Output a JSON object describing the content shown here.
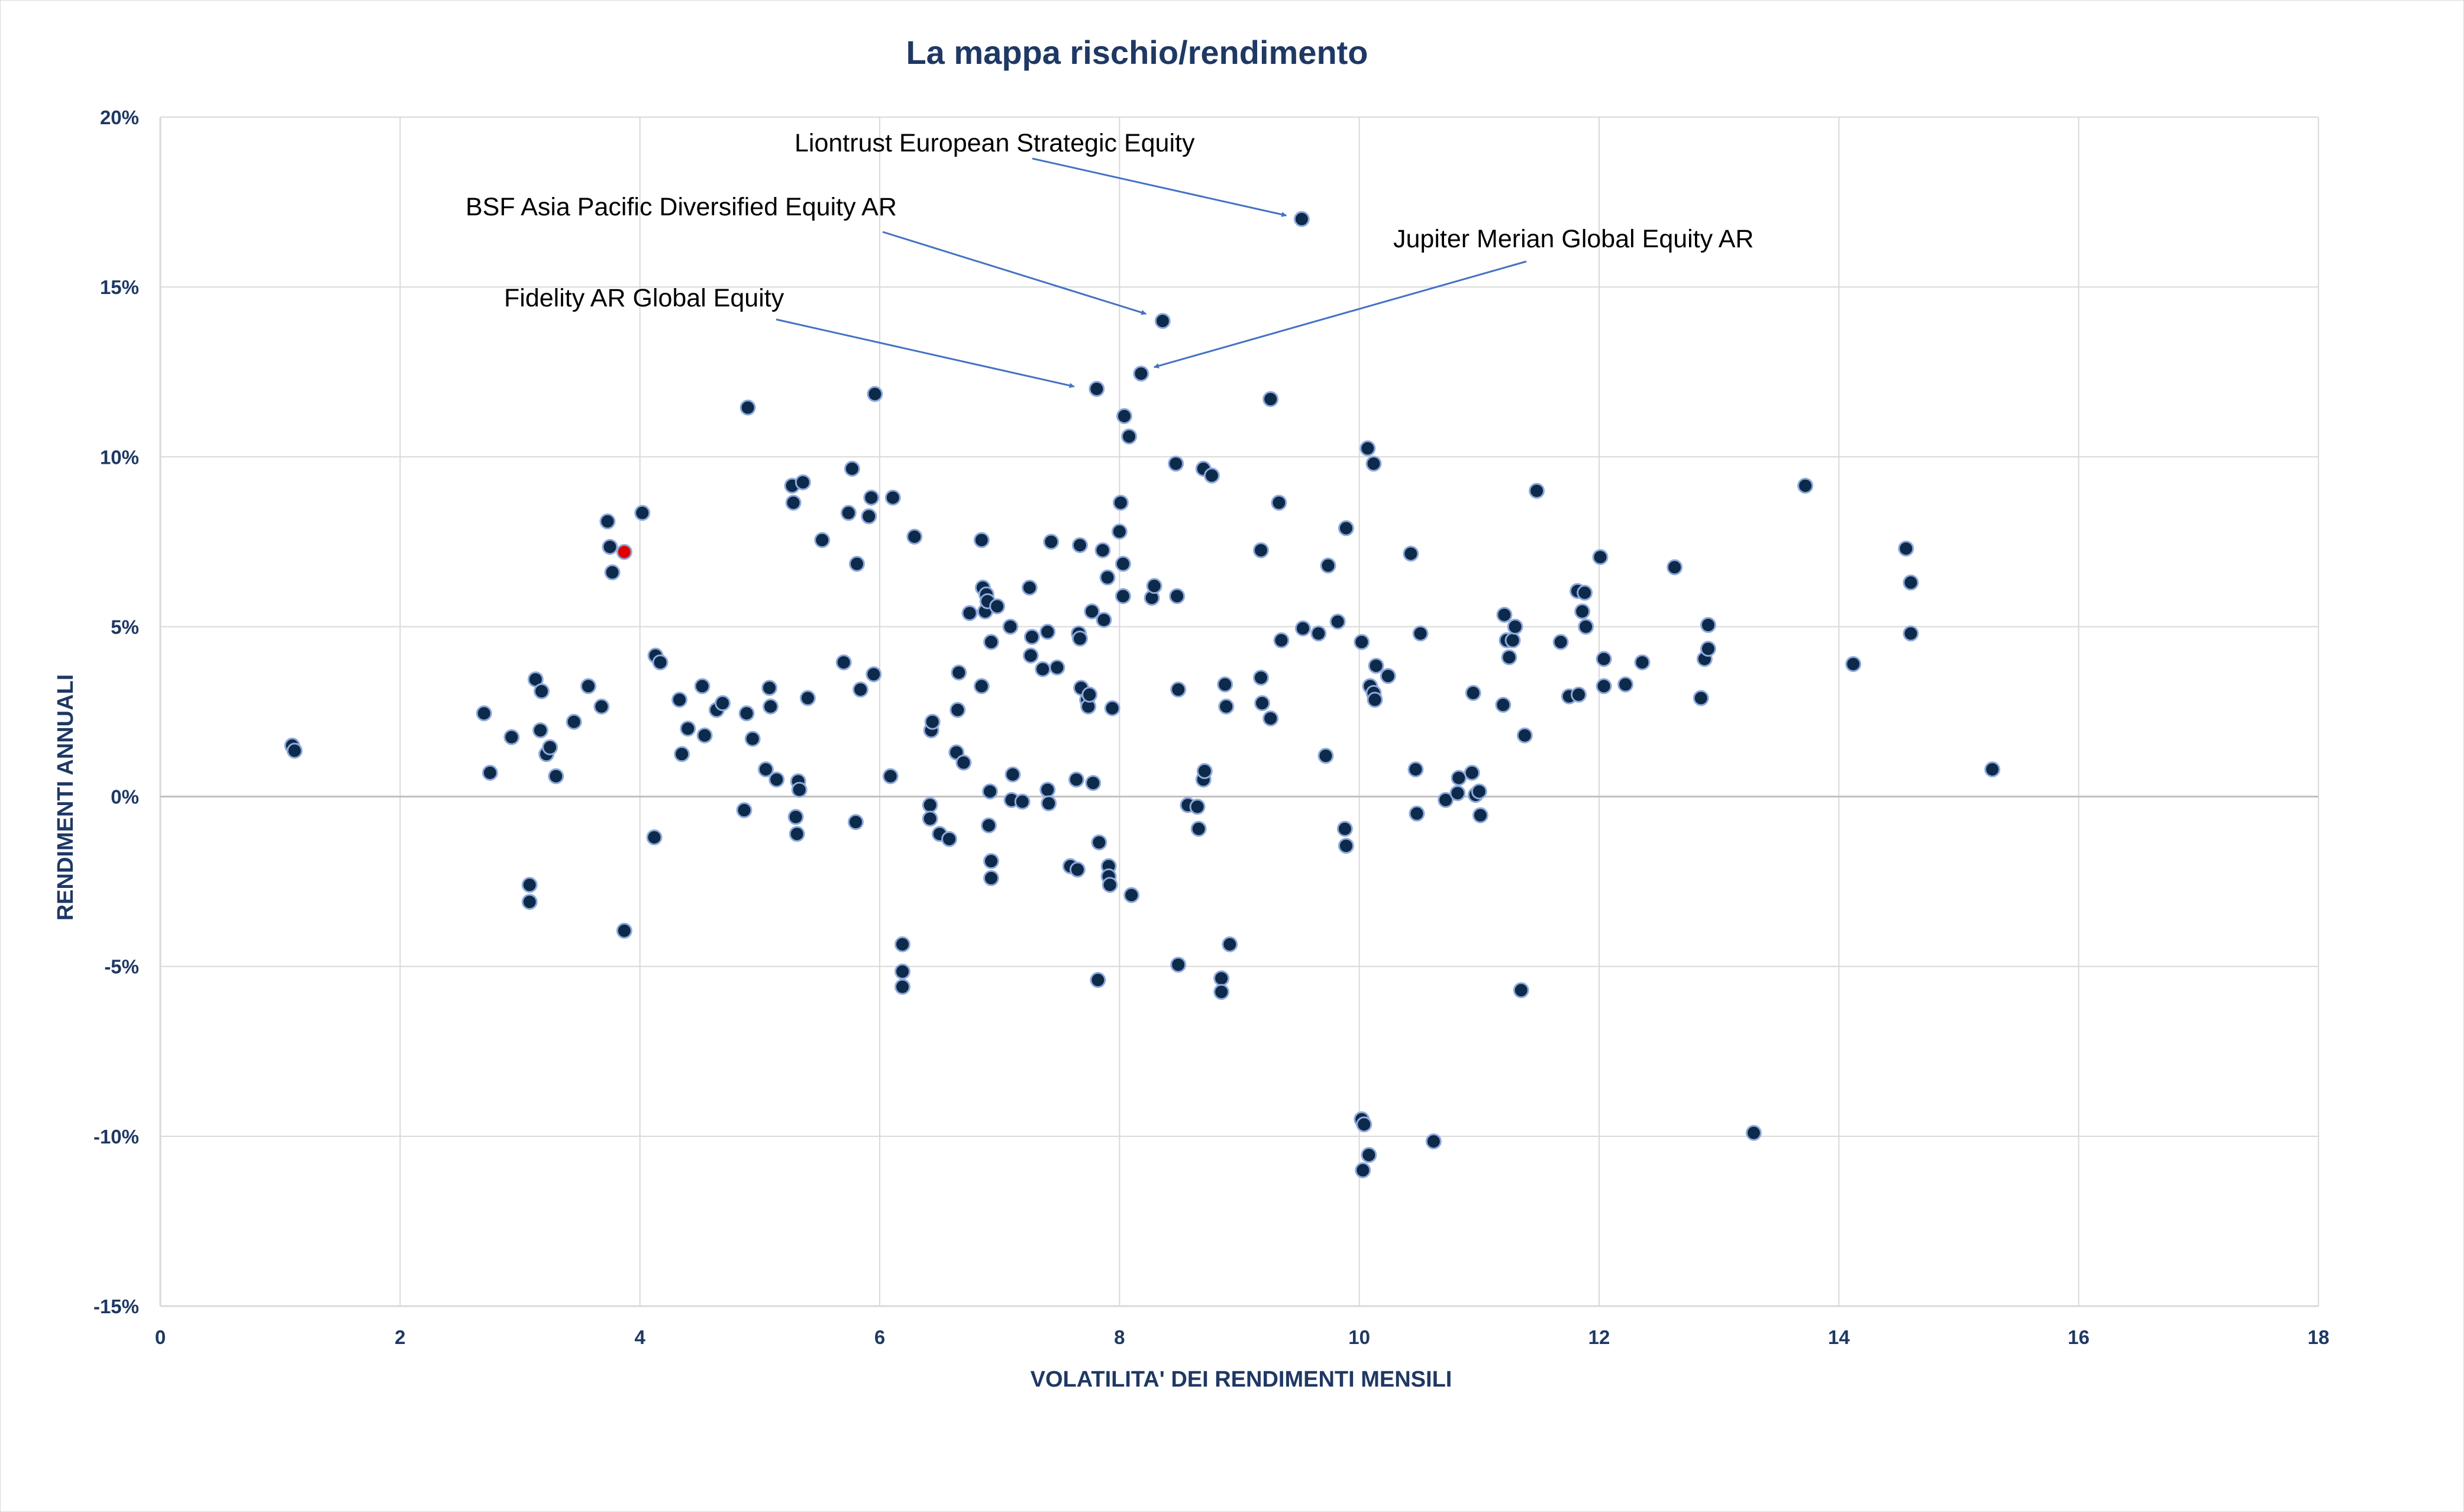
{
  "chart_data": {
    "type": "scatter",
    "title": "La mappa rischio/rendimento",
    "xlabel": "VOLATILITA' DEI RENDIMENTI MENSILI",
    "ylabel": "RENDIMENTI ANNUALI",
    "xlim": [
      0,
      18
    ],
    "ylim": [
      -15,
      20
    ],
    "x_ticks": [
      0,
      2,
      4,
      6,
      8,
      10,
      12,
      14,
      16,
      18
    ],
    "y_ticks": [
      -15,
      -10,
      -5,
      0,
      5,
      10,
      15,
      20
    ],
    "y_tick_labels": [
      "-15%",
      "-10%",
      "-5%",
      "0%",
      "5%",
      "10%",
      "15%",
      "20%"
    ],
    "grid": true,
    "colors": {
      "point": "#0d2a4a",
      "point_edge": "#8faadc",
      "highlight": "#e00000",
      "arrow": "#4472c4",
      "grid": "#d9d9d9",
      "text": "#1f3864"
    },
    "annotations": [
      {
        "text": "Liontrust European Strategic Equity",
        "x": 9.52,
        "y": 17.0
      },
      {
        "text": "BSF Asia Pacific Diversified Equity AR",
        "x": 8.35,
        "y": 14.0
      },
      {
        "text": "Jupiter Merian Global Equity AR",
        "x": 8.17,
        "y": 12.5
      },
      {
        "text": "Fidelity AR Global Equity",
        "x": 7.8,
        "y": 12.0
      }
    ],
    "highlight": {
      "x": 3.87,
      "y": 7.2
    },
    "series": [
      {
        "values": [
          [
            1.1,
            1.5
          ],
          [
            1.12,
            1.35
          ],
          [
            2.7,
            2.45
          ],
          [
            2.75,
            0.7
          ],
          [
            2.93,
            1.75
          ],
          [
            3.08,
            -2.6
          ],
          [
            3.08,
            -3.1
          ],
          [
            3.13,
            3.45
          ],
          [
            3.17,
            1.95
          ],
          [
            3.18,
            3.1
          ],
          [
            3.22,
            1.25
          ],
          [
            3.25,
            1.45
          ],
          [
            3.3,
            0.6
          ],
          [
            3.45,
            2.2
          ],
          [
            3.57,
            3.25
          ],
          [
            3.68,
            2.65
          ],
          [
            3.73,
            8.1
          ],
          [
            3.75,
            7.35
          ],
          [
            3.77,
            6.6
          ],
          [
            3.87,
            -3.95
          ],
          [
            4.02,
            8.35
          ],
          [
            4.12,
            -1.2
          ],
          [
            4.13,
            4.15
          ],
          [
            4.17,
            3.95
          ],
          [
            4.33,
            2.85
          ],
          [
            4.35,
            1.25
          ],
          [
            4.4,
            2.0
          ],
          [
            4.52,
            3.25
          ],
          [
            4.54,
            1.8
          ],
          [
            4.64,
            2.55
          ],
          [
            4.69,
            2.75
          ],
          [
            4.87,
            -0.4
          ],
          [
            4.89,
            2.45
          ],
          [
            4.9,
            11.45
          ],
          [
            4.94,
            1.7
          ],
          [
            5.05,
            0.8
          ],
          [
            5.08,
            3.2
          ],
          [
            5.09,
            2.65
          ],
          [
            5.14,
            0.5
          ],
          [
            5.27,
            9.15
          ],
          [
            5.28,
            8.65
          ],
          [
            5.3,
            -0.6
          ],
          [
            5.31,
            -1.1
          ],
          [
            5.32,
            0.45
          ],
          [
            5.33,
            0.2
          ],
          [
            5.36,
            9.25
          ],
          [
            5.4,
            2.9
          ],
          [
            5.52,
            7.55
          ],
          [
            5.7,
            3.95
          ],
          [
            5.74,
            8.35
          ],
          [
            5.77,
            9.65
          ],
          [
            5.8,
            -0.75
          ],
          [
            5.81,
            6.85
          ],
          [
            5.84,
            3.15
          ],
          [
            5.91,
            8.25
          ],
          [
            5.93,
            8.8
          ],
          [
            5.95,
            3.6
          ],
          [
            5.96,
            11.85
          ],
          [
            6.09,
            0.6
          ],
          [
            6.11,
            8.8
          ],
          [
            6.19,
            -4.35
          ],
          [
            6.19,
            -5.15
          ],
          [
            6.19,
            -5.6
          ],
          [
            6.29,
            7.65
          ],
          [
            6.42,
            -0.25
          ],
          [
            6.42,
            -0.65
          ],
          [
            6.43,
            1.95
          ],
          [
            6.44,
            2.2
          ],
          [
            6.5,
            -1.1
          ],
          [
            6.58,
            -1.25
          ],
          [
            6.64,
            1.3
          ],
          [
            6.65,
            2.55
          ],
          [
            6.66,
            3.65
          ],
          [
            6.7,
            1.0
          ],
          [
            6.75,
            5.4
          ],
          [
            6.85,
            3.25
          ],
          [
            6.85,
            7.55
          ],
          [
            6.86,
            6.15
          ],
          [
            6.88,
            5.45
          ],
          [
            6.89,
            5.95
          ],
          [
            6.9,
            5.75
          ],
          [
            6.91,
            -0.85
          ],
          [
            6.92,
            0.15
          ],
          [
            6.93,
            4.55
          ],
          [
            6.93,
            -1.9
          ],
          [
            6.93,
            -2.4
          ],
          [
            6.98,
            5.6
          ],
          [
            7.09,
            5.0
          ],
          [
            7.1,
            -0.1
          ],
          [
            7.11,
            0.65
          ],
          [
            7.19,
            -0.15
          ],
          [
            7.25,
            6.15
          ],
          [
            7.26,
            4.15
          ],
          [
            7.27,
            4.7
          ],
          [
            7.36,
            3.75
          ],
          [
            7.4,
            4.85
          ],
          [
            7.4,
            0.2
          ],
          [
            7.41,
            -0.2
          ],
          [
            7.43,
            7.5
          ],
          [
            7.48,
            3.8
          ],
          [
            7.59,
            -2.05
          ],
          [
            7.64,
            0.5
          ],
          [
            7.65,
            -2.15
          ],
          [
            7.66,
            4.8
          ],
          [
            7.67,
            4.65
          ],
          [
            7.67,
            7.4
          ],
          [
            7.68,
            3.2
          ],
          [
            7.73,
            2.85
          ],
          [
            7.74,
            2.65
          ],
          [
            7.75,
            3.0
          ],
          [
            7.77,
            5.45
          ],
          [
            7.78,
            0.4
          ],
          [
            7.81,
            12.0
          ],
          [
            7.82,
            -5.4
          ],
          [
            7.83,
            -1.35
          ],
          [
            7.86,
            7.25
          ],
          [
            7.87,
            5.2
          ],
          [
            7.9,
            6.45
          ],
          [
            7.91,
            -2.05
          ],
          [
            7.91,
            -2.35
          ],
          [
            7.92,
            -2.6
          ],
          [
            7.94,
            2.6
          ],
          [
            8.0,
            7.8
          ],
          [
            8.01,
            8.65
          ],
          [
            8.03,
            5.9
          ],
          [
            8.03,
            6.85
          ],
          [
            8.04,
            11.2
          ],
          [
            8.08,
            10.6
          ],
          [
            8.1,
            -2.9
          ],
          [
            8.18,
            12.45
          ],
          [
            8.27,
            5.85
          ],
          [
            8.29,
            6.2
          ],
          [
            8.36,
            14.0
          ],
          [
            8.47,
            9.8
          ],
          [
            8.48,
            5.9
          ],
          [
            8.49,
            3.15
          ],
          [
            8.49,
            -4.95
          ],
          [
            8.57,
            -0.25
          ],
          [
            8.65,
            -0.3
          ],
          [
            8.66,
            -0.95
          ],
          [
            8.7,
            9.65
          ],
          [
            8.7,
            0.5
          ],
          [
            8.71,
            0.75
          ],
          [
            8.77,
            9.45
          ],
          [
            8.85,
            -5.35
          ],
          [
            8.85,
            -5.75
          ],
          [
            8.88,
            3.3
          ],
          [
            8.89,
            2.65
          ],
          [
            8.92,
            -4.35
          ],
          [
            9.18,
            7.25
          ],
          [
            9.18,
            3.5
          ],
          [
            9.19,
            2.75
          ],
          [
            9.26,
            11.7
          ],
          [
            9.26,
            2.3
          ],
          [
            9.33,
            8.65
          ],
          [
            9.35,
            4.6
          ],
          [
            9.52,
            17.0
          ],
          [
            9.53,
            4.95
          ],
          [
            9.66,
            4.8
          ],
          [
            9.72,
            1.2
          ],
          [
            9.74,
            6.8
          ],
          [
            9.82,
            5.15
          ],
          [
            9.88,
            -0.95
          ],
          [
            9.89,
            -1.45
          ],
          [
            9.89,
            7.9
          ],
          [
            10.02,
            4.55
          ],
          [
            10.02,
            -9.5
          ],
          [
            10.03,
            -11.0
          ],
          [
            10.04,
            -9.65
          ],
          [
            10.07,
            10.25
          ],
          [
            10.08,
            -10.55
          ],
          [
            10.09,
            3.25
          ],
          [
            10.12,
            9.8
          ],
          [
            10.12,
            3.05
          ],
          [
            10.13,
            2.85
          ],
          [
            10.14,
            3.85
          ],
          [
            10.24,
            3.55
          ],
          [
            10.43,
            7.15
          ],
          [
            10.47,
            0.8
          ],
          [
            10.48,
            -0.5
          ],
          [
            10.51,
            4.8
          ],
          [
            10.62,
            -10.15
          ],
          [
            10.72,
            -0.1
          ],
          [
            10.82,
            0.1
          ],
          [
            10.83,
            0.55
          ],
          [
            10.94,
            0.7
          ],
          [
            10.95,
            3.05
          ],
          [
            10.97,
            0.05
          ],
          [
            11.0,
            0.15
          ],
          [
            11.01,
            -0.55
          ],
          [
            11.2,
            2.7
          ],
          [
            11.21,
            5.35
          ],
          [
            11.23,
            4.6
          ],
          [
            11.25,
            4.1
          ],
          [
            11.28,
            4.6
          ],
          [
            11.3,
            5.0
          ],
          [
            11.35,
            -5.7
          ],
          [
            11.38,
            1.8
          ],
          [
            11.48,
            9.0
          ],
          [
            11.68,
            4.55
          ],
          [
            11.75,
            2.95
          ],
          [
            11.82,
            6.05
          ],
          [
            11.83,
            3.0
          ],
          [
            11.86,
            5.45
          ],
          [
            11.88,
            6.0
          ],
          [
            11.89,
            5.0
          ],
          [
            12.01,
            7.05
          ],
          [
            12.04,
            4.05
          ],
          [
            12.04,
            3.25
          ],
          [
            12.22,
            3.3
          ],
          [
            12.36,
            3.95
          ],
          [
            12.63,
            6.75
          ],
          [
            12.85,
            2.9
          ],
          [
            12.88,
            4.05
          ],
          [
            12.91,
            5.05
          ],
          [
            12.91,
            4.35
          ],
          [
            13.29,
            -9.9
          ],
          [
            13.72,
            9.15
          ],
          [
            14.12,
            3.9
          ],
          [
            14.56,
            7.3
          ],
          [
            14.6,
            6.3
          ],
          [
            14.6,
            4.8
          ],
          [
            15.28,
            0.8
          ]
        ]
      }
    ]
  }
}
